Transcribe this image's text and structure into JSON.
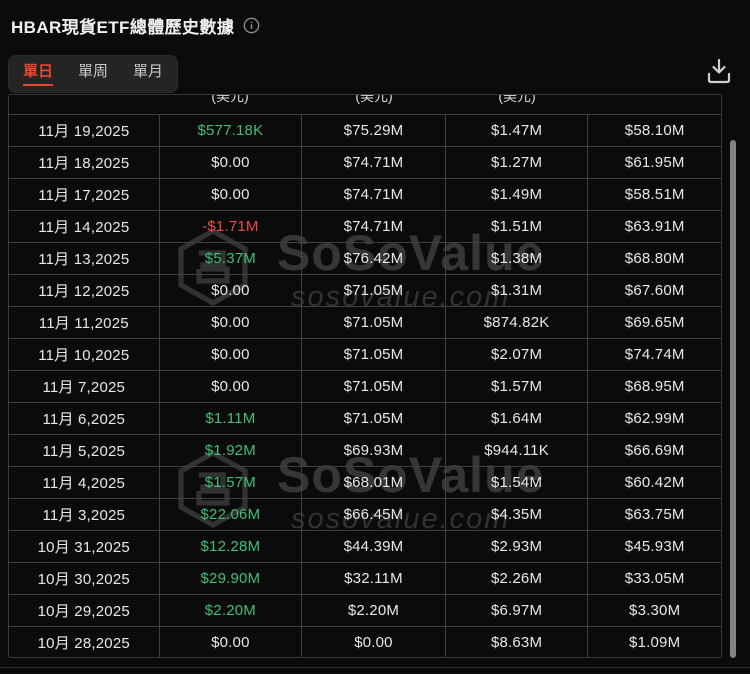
{
  "page": {
    "title": "HBAR現貨ETF總體歷史數據"
  },
  "icons": {
    "info": "info-icon",
    "download": "download-icon"
  },
  "tabs": [
    {
      "label": "單日",
      "active": true
    },
    {
      "label": "單周",
      "active": false
    },
    {
      "label": "單月",
      "active": false
    }
  ],
  "table": {
    "clipped_header_text": "(美元)",
    "rows": [
      {
        "date": "11月 19,2025",
        "values": [
          "$577.18K",
          "$75.29M",
          "$1.47M",
          "$58.10M"
        ],
        "flow": "positive"
      },
      {
        "date": "11月 18,2025",
        "values": [
          "$0.00",
          "$74.71M",
          "$1.27M",
          "$61.95M"
        ],
        "flow": "neutral"
      },
      {
        "date": "11月 17,2025",
        "values": [
          "$0.00",
          "$74.71M",
          "$1.49M",
          "$58.51M"
        ],
        "flow": "neutral"
      },
      {
        "date": "11月 14,2025",
        "values": [
          "-$1.71M",
          "$74.71M",
          "$1.51M",
          "$63.91M"
        ],
        "flow": "negative"
      },
      {
        "date": "11月 13,2025",
        "values": [
          "$5.37M",
          "$76.42M",
          "$1.38M",
          "$68.80M"
        ],
        "flow": "positive"
      },
      {
        "date": "11月 12,2025",
        "values": [
          "$0.00",
          "$71.05M",
          "$1.31M",
          "$67.60M"
        ],
        "flow": "neutral"
      },
      {
        "date": "11月 11,2025",
        "values": [
          "$0.00",
          "$71.05M",
          "$874.82K",
          "$69.65M"
        ],
        "flow": "neutral"
      },
      {
        "date": "11月 10,2025",
        "values": [
          "$0.00",
          "$71.05M",
          "$2.07M",
          "$74.74M"
        ],
        "flow": "neutral"
      },
      {
        "date": "11月 7,2025",
        "values": [
          "$0.00",
          "$71.05M",
          "$1.57M",
          "$68.95M"
        ],
        "flow": "neutral"
      },
      {
        "date": "11月 6,2025",
        "values": [
          "$1.11M",
          "$71.05M",
          "$1.64M",
          "$62.99M"
        ],
        "flow": "positive"
      },
      {
        "date": "11月 5,2025",
        "values": [
          "$1.92M",
          "$69.93M",
          "$944.11K",
          "$66.69M"
        ],
        "flow": "positive"
      },
      {
        "date": "11月 4,2025",
        "values": [
          "$1.57M",
          "$68.01M",
          "$1.54M",
          "$60.42M"
        ],
        "flow": "positive"
      },
      {
        "date": "11月 3,2025",
        "values": [
          "$22.06M",
          "$66.45M",
          "$4.35M",
          "$63.75M"
        ],
        "flow": "positive"
      },
      {
        "date": "10月 31,2025",
        "values": [
          "$12.28M",
          "$44.39M",
          "$2.93M",
          "$45.93M"
        ],
        "flow": "positive"
      },
      {
        "date": "10月 30,2025",
        "values": [
          "$29.90M",
          "$32.11M",
          "$2.26M",
          "$33.05M"
        ],
        "flow": "positive"
      },
      {
        "date": "10月 29,2025",
        "values": [
          "$2.20M",
          "$2.20M",
          "$6.97M",
          "$3.30M"
        ],
        "flow": "positive"
      },
      {
        "date": "10月 28,2025",
        "values": [
          "$0.00",
          "$0.00",
          "$8.63M",
          "$1.09M"
        ],
        "flow": "neutral"
      }
    ]
  },
  "watermark": {
    "brand": "SoSoValue",
    "domain": "sosovalue.com"
  },
  "colors": {
    "positive": "#3ec077",
    "negative": "#ee4b40",
    "neutral": "#e8e8e8",
    "accent": "#e8472b",
    "background": "#0b0b0b",
    "grid": "#414141"
  }
}
